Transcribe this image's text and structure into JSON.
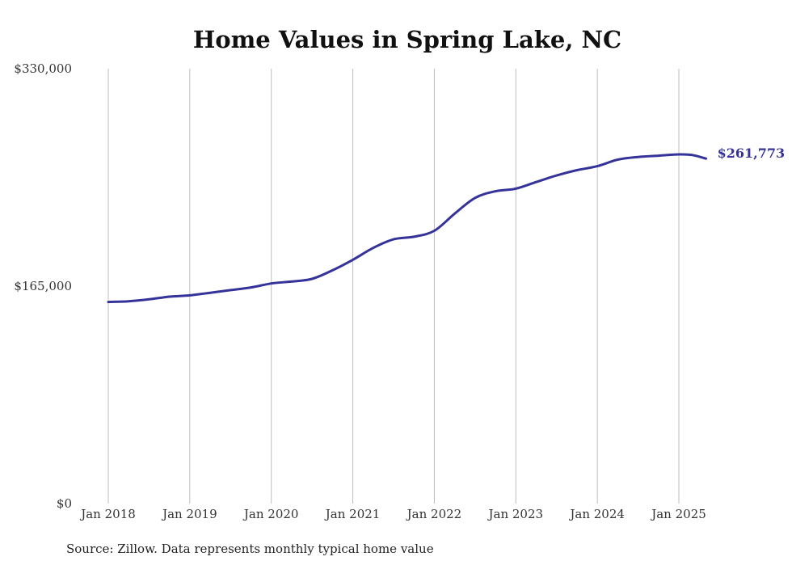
{
  "chart_data": {
    "type": "line",
    "title": "Home Values in Spring Lake, NC",
    "xlabel": "",
    "ylabel": "",
    "x_tick_labels": [
      "Jan 2018",
      "Jan 2019",
      "Jan 2020",
      "Jan 2021",
      "Jan 2022",
      "Jan 2023",
      "Jan 2024",
      "Jan 2025"
    ],
    "x_ticks": [
      "2018-01",
      "2019-01",
      "2020-01",
      "2021-01",
      "2022-01",
      "2023-01",
      "2024-01",
      "2025-01"
    ],
    "y_tick_labels": [
      "$0",
      "$165,000",
      "$330,000"
    ],
    "y_ticks": [
      0,
      165000,
      330000
    ],
    "ylim": [
      0,
      330000
    ],
    "xlim": [
      "2018-01",
      "2025-05"
    ],
    "grid": "vertical",
    "legend": "none",
    "line_color": "#35339a",
    "end_label": "$261,773",
    "series": [
      {
        "x": [
          "2018-01",
          "2018-04",
          "2018-07",
          "2018-10",
          "2019-01",
          "2019-04",
          "2019-07",
          "2019-10",
          "2020-01",
          "2020-04",
          "2020-07",
          "2020-10",
          "2021-01",
          "2021-04",
          "2021-07",
          "2021-10",
          "2022-01",
          "2022-04",
          "2022-07",
          "2022-10",
          "2023-01",
          "2023-04",
          "2023-07",
          "2023-10",
          "2024-01",
          "2024-04",
          "2024-07",
          "2024-10",
          "2025-01",
          "2025-03",
          "2025-05"
        ],
        "values": [
          153000,
          153500,
          155000,
          157000,
          158000,
          160000,
          162000,
          164000,
          167000,
          168500,
          170500,
          177000,
          185000,
          194000,
          200500,
          202500,
          207000,
          220000,
          232000,
          237000,
          239000,
          244000,
          249000,
          253000,
          256000,
          261000,
          263000,
          264000,
          265000,
          264500,
          261773
        ]
      }
    ]
  },
  "source_note": "Source: Zillow. Data represents monthly typical home value"
}
